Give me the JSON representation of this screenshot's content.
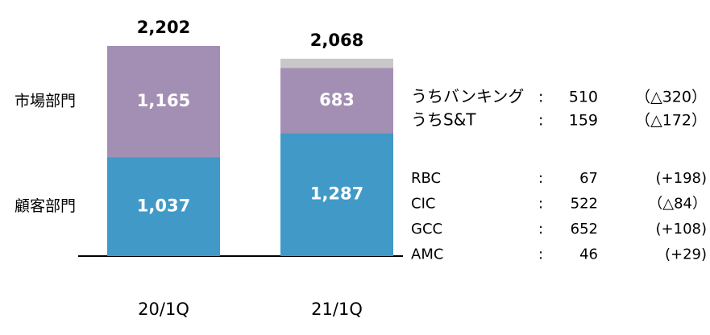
{
  "chart_data": {
    "type": "bar",
    "stacked": true,
    "categories": [
      "20/1Q",
      "21/1Q"
    ],
    "series": [
      {
        "name": "顧客部門",
        "color": "#4199c7",
        "values": [
          1037,
          1287
        ],
        "value_labels": [
          "1,037",
          "1,287"
        ]
      },
      {
        "name": "市場部門",
        "color": "#a38fb4",
        "values": [
          1165,
          683
        ],
        "value_labels": [
          "1,165",
          "683"
        ]
      },
      {
        "color": "#c8c8c8",
        "values": [
          null,
          98
        ]
      }
    ],
    "totals": {
      "values": [
        2202,
        2068
      ],
      "value_labels": [
        "2,202",
        "2,068"
      ]
    },
    "separator": ":",
    "annotation_groups": [
      [
        {
          "label": "うちバンキング",
          "value": 510,
          "change": "（△320）"
        },
        {
          "label": "うちS&T",
          "value": 159,
          "change": "（△172）"
        }
      ],
      [
        {
          "label": "RBC",
          "value": 67,
          "change": "(+198)"
        },
        {
          "label": "CIC",
          "value": 522,
          "change": "（△84）"
        },
        {
          "label": "GCC",
          "value": 652,
          "change": "(+108)"
        },
        {
          "label": "AMC",
          "value": 46,
          "change": "(+29)"
        }
      ]
    ]
  }
}
